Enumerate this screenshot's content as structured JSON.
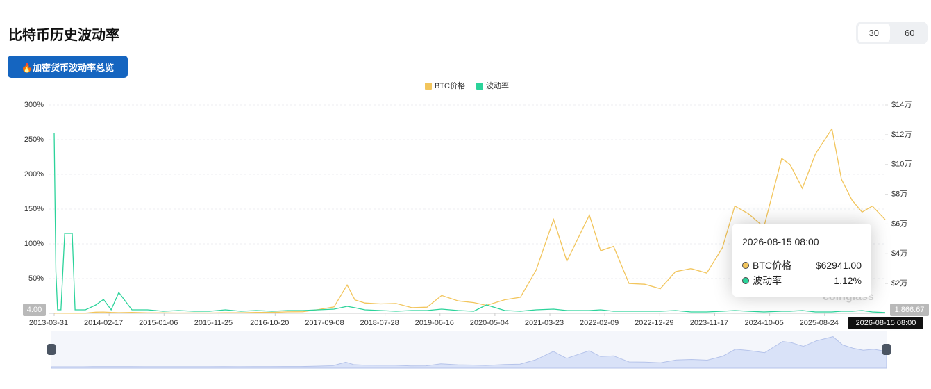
{
  "header": {
    "title": "比特币历史波动率",
    "toggle": [
      "30",
      "60"
    ],
    "overview_button": "🔥加密货币波动率总览"
  },
  "chart_data": {
    "type": "line",
    "x": [
      "2013-03-31",
      "2013-04-10",
      "2013-04-20",
      "2013-05-10",
      "2013-06-01",
      "2013-07-15",
      "2013-08-01",
      "2013-10-01",
      "2013-12-01",
      "2014-01-15",
      "2014-03-01",
      "2014-04-15",
      "2014-07-01",
      "2014-10-01",
      "2015-01-01",
      "2015-04-01",
      "2015-07-01",
      "2015-10-01",
      "2016-01-01",
      "2016-04-01",
      "2016-07-01",
      "2016-10-01",
      "2017-01-01",
      "2017-04-01",
      "2017-07-01",
      "2017-10-01",
      "2017-12-17",
      "2018-02-01",
      "2018-04-01",
      "2018-07-01",
      "2018-10-01",
      "2019-01-01",
      "2019-04-01",
      "2019-06-26",
      "2019-10-01",
      "2020-01-01",
      "2020-03-15",
      "2020-07-01",
      "2020-10-01",
      "2021-01-01",
      "2021-04-14",
      "2021-07-01",
      "2021-11-10",
      "2022-01-15",
      "2022-04-01",
      "2022-07-01",
      "2022-10-01",
      "2023-01-01",
      "2023-04-01",
      "2023-07-01",
      "2023-10-01",
      "2024-01-01",
      "2024-03-14",
      "2024-06-01",
      "2024-09-01",
      "2024-12-15",
      "2025-02-01",
      "2025-04-15",
      "2025-07-01",
      "2025-10-06",
      "2025-12-01",
      "2026-02-01",
      "2026-04-01",
      "2026-06-01",
      "2026-08-15"
    ],
    "xlim": [
      "2013-03-31",
      "2026-08-15"
    ],
    "xticks": [
      "2013-03-31",
      "2014-02-17",
      "2015-01-06",
      "2015-11-25",
      "2016-10-20",
      "2017-09-08",
      "2018-07-28",
      "2019-06-16",
      "2020-05-04",
      "2021-03-23",
      "2022-02-09",
      "2022-12-29",
      "2023-11-17",
      "2024-10-05",
      "2025-08-24"
    ],
    "series": [
      {
        "name": "BTC价格",
        "color": "#f2c55c",
        "axis": "y2",
        "values": [
          100,
          140,
          120,
          120,
          110,
          90,
          100,
          130,
          800,
          900,
          600,
          450,
          640,
          330,
          315,
          245,
          260,
          240,
          430,
          415,
          670,
          610,
          1000,
          1080,
          2500,
          4300,
          19000,
          9000,
          6900,
          6300,
          6600,
          3800,
          4100,
          12000,
          8300,
          7200,
          5300,
          9100,
          10800,
          29000,
          63000,
          35000,
          66000,
          42000,
          45000,
          20000,
          19500,
          16500,
          28000,
          30000,
          27000,
          44000,
          72000,
          67000,
          58000,
          104000,
          100000,
          84000,
          107000,
          124000,
          90000,
          76000,
          68000,
          72000,
          62941
        ]
      },
      {
        "name": "波动率",
        "color": "#2bd39a",
        "values": [
          260,
          60,
          5,
          5,
          115,
          115,
          5,
          5,
          12,
          20,
          5,
          30,
          5,
          5,
          3,
          4,
          3,
          3,
          5,
          3,
          4,
          3,
          4,
          4,
          5,
          6,
          10,
          8,
          5,
          4,
          3,
          4,
          4,
          6,
          4,
          3,
          12,
          4,
          3,
          5,
          6,
          4,
          4,
          5,
          3,
          3,
          3,
          3,
          4,
          2,
          2,
          3,
          4,
          3,
          2,
          3,
          3,
          4,
          2,
          2,
          3,
          3,
          4,
          2,
          1.12
        ]
      }
    ],
    "ylim": [
      0,
      300
    ],
    "yticks": [
      {
        "value": 50,
        "label": "50%"
      },
      {
        "value": 100,
        "label": "100%"
      },
      {
        "value": 150,
        "label": "150%"
      },
      {
        "value": 200,
        "label": "200%"
      },
      {
        "value": 250,
        "label": "250%"
      },
      {
        "value": 300,
        "label": "300%"
      }
    ],
    "y2lim": [
      0,
      140000
    ],
    "y2ticks": [
      {
        "value": 20000,
        "label": "$2万"
      },
      {
        "value": 40000,
        "label": "$4万"
      },
      {
        "value": 60000,
        "label": "$6万"
      },
      {
        "value": 80000,
        "label": "$8万"
      },
      {
        "value": 100000,
        "label": "$10万"
      },
      {
        "value": 120000,
        "label": "$12万"
      },
      {
        "value": 140000,
        "label": "$14万"
      }
    ],
    "grid": true,
    "legend": "top",
    "watermark": "coinglass"
  },
  "tooltip": {
    "title": "2026-08-15 08:00",
    "rows": [
      {
        "name": "BTC价格",
        "value": "$62941.00"
      },
      {
        "name": "波动率",
        "value": "1.12%"
      }
    ]
  },
  "axis_pointer": {
    "y_label": "4.00",
    "y2_label": "1,866.67",
    "x_label": "2026-08-15 08:00"
  }
}
